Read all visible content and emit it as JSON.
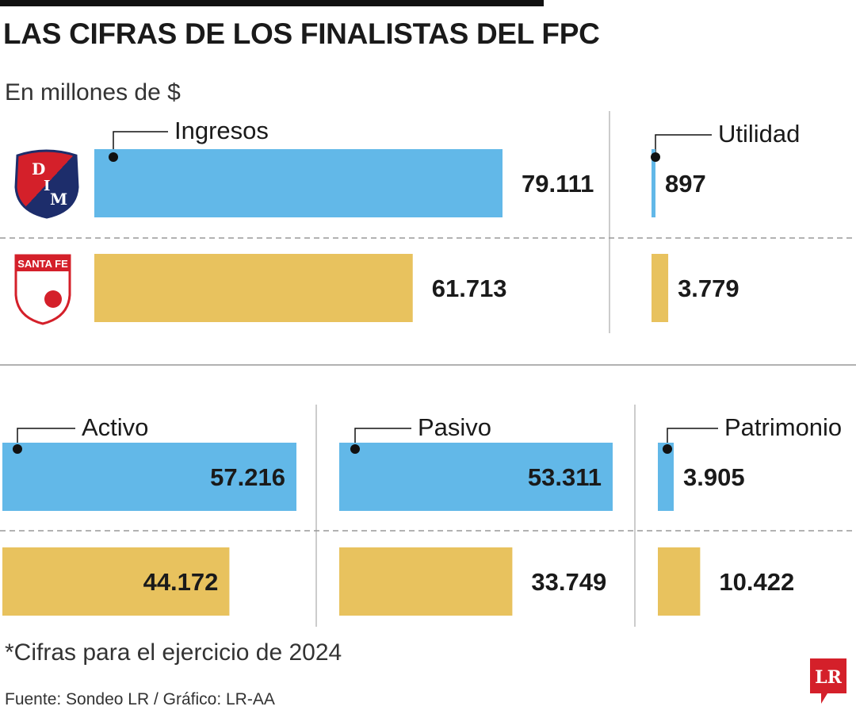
{
  "header": {
    "title": "LAS CIFRAS DE LOS FINALISTAS DEL FPC",
    "subtitle": "En millones de $"
  },
  "footer": {
    "note": "*Cifras para el ejercicio de 2024",
    "source": "Fuente: Sondeo LR / Gráfico: LR-AA",
    "logo_text": "LR"
  },
  "teams": [
    {
      "name": "Independiente Medellín",
      "badge_text": [
        "D",
        "I",
        "M"
      ],
      "color": "#62b8e8"
    },
    {
      "name": "Santa Fe",
      "badge_text": [
        "SANTA FE"
      ],
      "color": "#e8c25e"
    }
  ],
  "chart_data": [
    {
      "type": "bar",
      "title": "Ingresos",
      "categories": [
        "DIM",
        "Santa Fe"
      ],
      "values": [
        79111,
        61713
      ],
      "labels": [
        "79.111",
        "61.713"
      ]
    },
    {
      "type": "bar",
      "title": "Utilidad",
      "categories": [
        "DIM",
        "Santa Fe"
      ],
      "values": [
        897,
        3779
      ],
      "labels": [
        "897",
        "3.779"
      ]
    },
    {
      "type": "bar",
      "title": "Activo",
      "categories": [
        "DIM",
        "Santa Fe"
      ],
      "values": [
        57216,
        44172
      ],
      "labels": [
        "57.216",
        "44.172"
      ]
    },
    {
      "type": "bar",
      "title": "Pasivo",
      "categories": [
        "DIM",
        "Santa Fe"
      ],
      "values": [
        53311,
        33749
      ],
      "labels": [
        "53.311",
        "33.749"
      ]
    },
    {
      "type": "bar",
      "title": "Patrimonio",
      "categories": [
        "DIM",
        "Santa Fe"
      ],
      "values": [
        3905,
        10422
      ],
      "labels": [
        "3.905",
        "10.422"
      ]
    }
  ]
}
